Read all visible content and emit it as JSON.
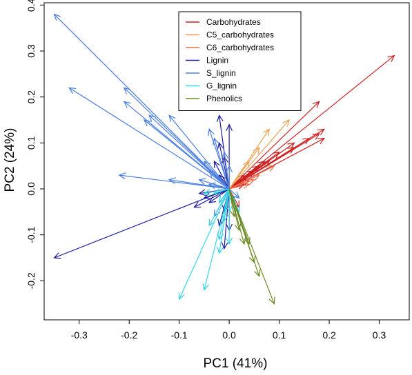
{
  "chart_data": {
    "type": "biplot",
    "xlabel": "PC1 (41%)",
    "ylabel": "PC2 (24%)",
    "xlim": [
      -0.37,
      0.36
    ],
    "ylim": [
      -0.285,
      0.405
    ],
    "x_ticks": [
      -0.3,
      -0.2,
      -0.1,
      0.0,
      0.1,
      0.2,
      0.3
    ],
    "x_tick_labels": [
      "-0.3",
      "-0.2",
      "-0.1",
      "0.0",
      "0.1",
      "0.2",
      "0.3"
    ],
    "y_ticks": [
      -0.2,
      -0.1,
      0.0,
      0.1,
      0.2,
      0.3,
      0.4
    ],
    "y_tick_labels": [
      "-0.2",
      "-0.1",
      "0.0",
      "0.1",
      "0.2",
      "0.3",
      "0.4"
    ],
    "grid": false,
    "legend_position": "top-center",
    "series": [
      {
        "name": "Carbohydrates",
        "color": "#cc1f1f",
        "vectors": [
          [
            0.33,
            0.29
          ],
          [
            0.19,
            0.13
          ],
          [
            0.18,
            0.12
          ],
          [
            0.19,
            0.11
          ],
          [
            0.16,
            0.11
          ],
          [
            0.18,
            0.19
          ],
          [
            0.13,
            0.1
          ],
          [
            0.13,
            0.09
          ],
          [
            0.1,
            0.08
          ],
          [
            0.08,
            0.06
          ],
          [
            0.07,
            0.06
          ],
          [
            0.06,
            0.05
          ],
          [
            0.05,
            0.04
          ],
          [
            0.04,
            0.02
          ],
          [
            0.03,
            0.03
          ],
          [
            0.02,
            -0.04
          ],
          [
            0.03,
            0.01
          ]
        ]
      },
      {
        "name": "C5_carbohydrates",
        "color": "#f0a050",
        "vectors": [
          [
            0.12,
            0.15
          ],
          [
            0.08,
            0.13
          ],
          [
            0.06,
            0.09
          ],
          [
            0.04,
            0.06
          ]
        ]
      },
      {
        "name": "C6_carbohydrates",
        "color": "#ee6a4a",
        "vectors": [
          [
            0.09,
            0.05
          ],
          [
            0.06,
            0.03
          ],
          [
            0.05,
            0.02
          ],
          [
            0.04,
            0.01
          ]
        ]
      },
      {
        "name": "Lignin",
        "color": "#1a1a9e",
        "vectors": [
          [
            -0.35,
            -0.15
          ],
          [
            -0.02,
            0.16
          ],
          [
            0.0,
            0.14
          ],
          [
            -0.02,
            0.1
          ],
          [
            -0.01,
            0.07
          ],
          [
            -0.03,
            0.06
          ],
          [
            -0.06,
            -0.01
          ],
          [
            -0.07,
            -0.04
          ],
          [
            -0.02,
            -0.08
          ],
          [
            -0.01,
            -0.13
          ],
          [
            0.0,
            -0.09
          ],
          [
            -0.04,
            -0.03
          ],
          [
            -0.02,
            0.03
          ],
          [
            -0.01,
            -0.05
          ],
          [
            -0.05,
            -0.02
          ]
        ]
      },
      {
        "name": "S_lignin",
        "color": "#4a7ee0",
        "vectors": [
          [
            -0.35,
            0.38
          ],
          [
            -0.32,
            0.22
          ],
          [
            -0.21,
            0.22
          ],
          [
            -0.21,
            0.19
          ],
          [
            -0.16,
            0.16
          ],
          [
            -0.17,
            0.15
          ],
          [
            -0.12,
            0.16
          ],
          [
            -0.22,
            0.03
          ],
          [
            -0.12,
            0.02
          ],
          [
            -0.04,
            0.13
          ],
          [
            -0.03,
            0.11
          ],
          [
            -0.05,
            0.06
          ],
          [
            -0.04,
            0.04
          ],
          [
            -0.06,
            0.02
          ],
          [
            -0.02,
            -0.03
          ],
          [
            -0.03,
            -0.06
          ],
          [
            -0.04,
            0.01
          ],
          [
            0.0,
            0.05
          ],
          [
            0.02,
            -0.02
          ],
          [
            -0.01,
            0.08
          ]
        ]
      },
      {
        "name": "G_lignin",
        "color": "#33d4e8",
        "vectors": [
          [
            -0.1,
            -0.24
          ],
          [
            -0.05,
            -0.22
          ],
          [
            -0.02,
            -0.14
          ],
          [
            -0.02,
            -0.11
          ],
          [
            -0.04,
            -0.08
          ],
          [
            0.0,
            -0.12
          ],
          [
            0.0,
            -0.05
          ],
          [
            -0.05,
            -0.01
          ],
          [
            -0.03,
            -0.01
          ],
          [
            -0.02,
            -0.03
          ],
          [
            -0.01,
            -0.07
          ],
          [
            0.01,
            -0.03
          ],
          [
            0.02,
            -0.05
          ]
        ]
      },
      {
        "name": "Phenolics",
        "color": "#6a8a22",
        "vectors": [
          [
            0.09,
            -0.25
          ],
          [
            0.06,
            -0.19
          ],
          [
            0.05,
            -0.16
          ],
          [
            0.03,
            -0.12
          ],
          [
            0.02,
            -0.09
          ],
          [
            0.01,
            -0.06
          ],
          [
            0.04,
            -0.12
          ]
        ]
      }
    ]
  }
}
